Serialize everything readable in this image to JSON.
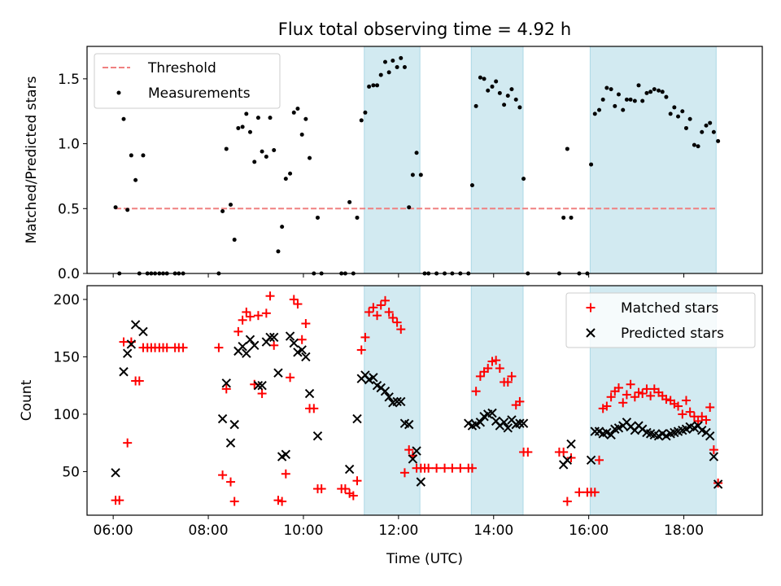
{
  "chart_data": {
    "title": "Flux total observing time = 4.92 h",
    "xlabel": "Time (UTC)",
    "xlim": [
      5.45,
      19.65
    ],
    "xticks": [
      6,
      8,
      10,
      12,
      14,
      16,
      18
    ],
    "xtick_labels": [
      "06:00",
      "08:00",
      "10:00",
      "12:00",
      "14:00",
      "16:00",
      "18:00"
    ],
    "colors": {
      "measurement": "#000000",
      "threshold": "#f08080",
      "matched": "#ff0000",
      "predicted": "#000000",
      "shade": "#add8e6"
    },
    "shaded_intervals": [
      [
        11.28,
        12.45
      ],
      [
        13.53,
        14.62
      ],
      [
        16.03,
        18.68
      ]
    ],
    "panels": [
      {
        "type": "scatter",
        "ylabel": "Matched/Predicted stars",
        "ylim": [
          0,
          1.75
        ],
        "yticks": [
          0.0,
          0.5,
          1.0,
          1.5
        ],
        "ytick_labels": [
          "0.0",
          "0.5",
          "1.0",
          "1.5"
        ],
        "legend_position": "top-left",
        "threshold": {
          "name": "Threshold",
          "value": 0.5,
          "x_range": [
            6.05,
            18.68
          ]
        },
        "series": [
          {
            "name": "Measurements",
            "x": [
              6.05,
              6.13,
              6.22,
              6.3,
              6.38,
              6.47,
              6.55,
              6.63,
              6.72,
              6.8,
              6.88,
              6.97,
              7.05,
              7.13,
              7.3,
              7.38,
              7.47,
              8.22,
              8.3,
              8.38,
              8.47,
              8.55,
              8.63,
              8.72,
              8.8,
              8.88,
              8.97,
              9.05,
              9.13,
              9.22,
              9.3,
              9.38,
              9.47,
              9.55,
              9.63,
              9.72,
              9.8,
              9.88,
              9.97,
              10.05,
              10.13,
              10.22,
              10.3,
              10.38,
              10.8,
              10.88,
              10.97,
              11.05,
              11.13,
              11.22,
              11.3,
              11.38,
              11.47,
              11.55,
              11.63,
              11.72,
              11.8,
              11.88,
              11.97,
              12.05,
              12.13,
              12.22,
              12.3,
              12.38,
              12.47,
              12.55,
              12.63,
              12.8,
              12.97,
              13.13,
              13.3,
              13.47,
              13.55,
              13.63,
              13.72,
              13.8,
              13.88,
              13.97,
              14.05,
              14.13,
              14.22,
              14.3,
              14.38,
              14.47,
              14.55,
              14.63,
              14.72,
              15.38,
              15.47,
              15.55,
              15.63,
              15.8,
              15.97,
              16.05,
              16.13,
              16.22,
              16.3,
              16.38,
              16.47,
              16.55,
              16.63,
              16.72,
              16.8,
              16.88,
              16.97,
              17.05,
              17.13,
              17.22,
              17.3,
              17.38,
              17.47,
              17.55,
              17.63,
              17.72,
              17.8,
              17.88,
              17.97,
              18.05,
              18.13,
              18.22,
              18.3,
              18.38,
              18.47,
              18.55,
              18.63,
              18.72
            ],
            "y": [
              0.51,
              0.0,
              1.19,
              0.49,
              0.91,
              0.72,
              0.0,
              0.91,
              0.0,
              0.0,
              0.0,
              0.0,
              0.0,
              0.0,
              0.0,
              0.0,
              0.0,
              0.0,
              0.48,
              0.96,
              0.53,
              0.26,
              1.12,
              1.13,
              1.23,
              1.09,
              0.86,
              1.2,
              0.94,
              0.9,
              1.2,
              0.95,
              0.17,
              0.36,
              0.73,
              0.77,
              1.24,
              1.27,
              1.07,
              1.19,
              0.89,
              0.0,
              0.43,
              0.0,
              0.0,
              0.0,
              0.55,
              0.0,
              0.43,
              1.18,
              1.24,
              1.44,
              1.45,
              1.45,
              1.53,
              1.63,
              1.55,
              1.64,
              1.59,
              1.66,
              1.59,
              0.51,
              0.76,
              0.93,
              0.76,
              0.0,
              0.0,
              0.0,
              0.0,
              0.0,
              0.0,
              0.0,
              0.68,
              1.29,
              1.51,
              1.5,
              1.41,
              1.44,
              1.48,
              1.39,
              1.3,
              1.37,
              1.42,
              1.34,
              1.28,
              0.73,
              0.0,
              0.0,
              0.43,
              0.96,
              0.43,
              0.0,
              0.0,
              0.84,
              1.23,
              1.26,
              1.34,
              1.43,
              1.42,
              1.29,
              1.38,
              1.26,
              1.34,
              1.34,
              1.33,
              1.45,
              1.33,
              1.39,
              1.4,
              1.42,
              1.41,
              1.4,
              1.36,
              1.23,
              1.28,
              1.21,
              1.25,
              1.12,
              1.19,
              0.99,
              0.98,
              1.09,
              1.14,
              1.16,
              1.09,
              1.02
            ]
          }
        ]
      },
      {
        "type": "scatter",
        "ylabel": "Count",
        "ylim": [
          12,
          212
        ],
        "yticks": [
          50,
          100,
          150,
          200
        ],
        "ytick_labels": [
          "50",
          "100",
          "150",
          "200"
        ],
        "legend_position": "top-right",
        "series": [
          {
            "name": "Matched stars",
            "marker": "plus",
            "x": [
              6.05,
              6.13,
              6.22,
              6.3,
              6.38,
              6.47,
              6.55,
              6.63,
              6.72,
              6.8,
              6.88,
              6.97,
              7.05,
              7.13,
              7.3,
              7.38,
              7.47,
              8.22,
              8.3,
              8.38,
              8.47,
              8.55,
              8.63,
              8.72,
              8.8,
              8.88,
              8.97,
              9.05,
              9.13,
              9.22,
              9.3,
              9.38,
              9.47,
              9.55,
              9.63,
              9.72,
              9.8,
              9.88,
              9.97,
              10.05,
              10.13,
              10.22,
              10.3,
              10.38,
              10.8,
              10.88,
              10.97,
              11.05,
              11.13,
              11.22,
              11.3,
              11.38,
              11.47,
              11.55,
              11.63,
              11.72,
              11.8,
              11.88,
              11.97,
              12.05,
              12.13,
              12.22,
              12.3,
              12.38,
              12.47,
              12.55,
              12.63,
              12.8,
              12.97,
              13.13,
              13.3,
              13.47,
              13.55,
              13.63,
              13.72,
              13.8,
              13.88,
              13.97,
              14.05,
              14.13,
              14.22,
              14.3,
              14.38,
              14.47,
              14.55,
              14.63,
              14.72,
              15.38,
              15.47,
              15.55,
              15.63,
              15.8,
              15.97,
              16.05,
              16.13,
              16.22,
              16.3,
              16.38,
              16.47,
              16.55,
              16.63,
              16.72,
              16.8,
              16.88,
              16.97,
              17.05,
              17.13,
              17.22,
              17.3,
              17.38,
              17.47,
              17.55,
              17.63,
              17.72,
              17.8,
              17.88,
              17.97,
              18.05,
              18.13,
              18.22,
              18.3,
              18.38,
              18.47,
              18.55,
              18.63,
              18.72
            ],
            "y": [
              25,
              25,
              163,
              75,
              163,
              129,
              129,
              158,
              158,
              158,
              158,
              158,
              158,
              158,
              158,
              158,
              158,
              158,
              47,
              122,
              41,
              24,
              172,
              182,
              189,
              185,
              126,
              186,
              118,
              188,
              203,
              160,
              25,
              24,
              48,
              132,
              200,
              196,
              165,
              179,
              105,
              105,
              35,
              35,
              35,
              35,
              31,
              29,
              42,
              156,
              167,
              189,
              193,
              186,
              195,
              199,
              189,
              184,
              180,
              174,
              49,
              69,
              64,
              53,
              53,
              53,
              53,
              53,
              53,
              53,
              53,
              53,
              53,
              120,
              133,
              137,
              140,
              146,
              147,
              140,
              128,
              128,
              133,
              108,
              111,
              67,
              67,
              67,
              67,
              24,
              62,
              32,
              32,
              32,
              32,
              60,
              105,
              107,
              115,
              120,
              123,
              110,
              117,
              126,
              115,
              119,
              118,
              122,
              116,
              122,
              119,
              116,
              113,
              112,
              109,
              107,
              100,
              112,
              102,
              98,
              94,
              98,
              95,
              106,
              69,
              40
            ]
          },
          {
            "name": "Predicted stars",
            "marker": "x",
            "x": [
              6.05,
              6.22,
              6.3,
              6.38,
              6.47,
              6.63,
              8.3,
              8.38,
              8.47,
              8.55,
              8.63,
              8.72,
              8.8,
              8.88,
              8.97,
              9.05,
              9.13,
              9.22,
              9.3,
              9.38,
              9.47,
              9.55,
              9.63,
              9.72,
              9.8,
              9.88,
              9.97,
              10.05,
              10.13,
              10.3,
              10.97,
              11.13,
              11.22,
              11.3,
              11.38,
              11.47,
              11.55,
              11.63,
              11.72,
              11.8,
              11.88,
              11.97,
              12.05,
              12.13,
              12.22,
              12.3,
              12.38,
              12.47,
              13.47,
              13.55,
              13.63,
              13.72,
              13.8,
              13.88,
              13.97,
              14.05,
              14.13,
              14.22,
              14.3,
              14.38,
              14.47,
              14.55,
              14.63,
              15.47,
              15.55,
              15.63,
              16.05,
              16.13,
              16.22,
              16.3,
              16.38,
              16.47,
              16.55,
              16.63,
              16.72,
              16.8,
              16.88,
              16.97,
              17.05,
              17.13,
              17.22,
              17.3,
              17.38,
              17.47,
              17.55,
              17.63,
              17.72,
              17.8,
              17.88,
              17.97,
              18.05,
              18.13,
              18.22,
              18.3,
              18.38,
              18.47,
              18.55,
              18.63,
              18.72
            ],
            "y": [
              49,
              137,
              153,
              161,
              178,
              172,
              96,
              127,
              75,
              91,
              155,
              159,
              153,
              165,
              160,
              125,
              125,
              163,
              167,
              167,
              136,
              63,
              65,
              168,
              162,
              154,
              156,
              150,
              118,
              81,
              52,
              96,
              131,
              134,
              130,
              132,
              125,
              123,
              120,
              115,
              110,
              111,
              111,
              92,
              91,
              61,
              68,
              41,
              92,
              90,
              91,
              93,
              98,
              100,
              101,
              94,
              90,
              93,
              88,
              95,
              91,
              92,
              92,
              56,
              60,
              74,
              60,
              85,
              85,
              83,
              84,
              82,
              87,
              88,
              90,
              93,
              89,
              86,
              90,
              87,
              84,
              83,
              82,
              81,
              83,
              81,
              83,
              84,
              85,
              86,
              87,
              89,
              88,
              90,
              86,
              84,
              81,
              63,
              39
            ]
          }
        ]
      }
    ]
  }
}
